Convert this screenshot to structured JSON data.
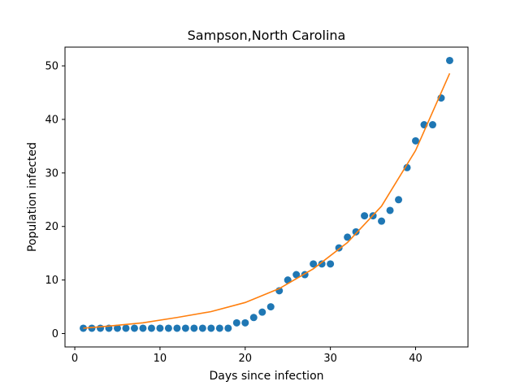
{
  "chart_data": {
    "type": "scatter",
    "title": "Sampson,North Carolina",
    "xlabel": "Days since infection",
    "ylabel": "Population infected",
    "xlim": [
      -1.15,
      46.15
    ],
    "ylim": [
      -2.5,
      53.5
    ],
    "xticks": [
      0,
      10,
      20,
      30,
      40
    ],
    "yticks": [
      0,
      10,
      20,
      30,
      40,
      50
    ],
    "grid": false,
    "series": [
      {
        "kind": "scatter",
        "color": "#1f77b4",
        "x": [
          1,
          2,
          3,
          4,
          5,
          6,
          7,
          8,
          9,
          10,
          11,
          12,
          13,
          14,
          15,
          16,
          17,
          18,
          19,
          20,
          21,
          22,
          23,
          24,
          25,
          26,
          27,
          28,
          29,
          30,
          31,
          32,
          33,
          34,
          35,
          36,
          37,
          38,
          39,
          40,
          41,
          42,
          43,
          44
        ],
        "y": [
          1,
          1,
          1,
          1,
          1,
          1,
          1,
          1,
          1,
          1,
          1,
          1,
          1,
          1,
          1,
          1,
          1,
          1,
          2,
          2,
          3,
          4,
          5,
          8,
          10,
          11,
          11,
          13,
          13,
          13,
          16,
          18,
          19,
          22,
          22,
          21,
          23,
          25,
          31,
          36,
          39,
          39,
          44,
          51
        ]
      },
      {
        "kind": "line",
        "color": "#ff7f0e",
        "x": [
          1,
          4,
          8,
          12,
          16,
          20,
          24,
          28,
          32,
          36,
          40,
          44
        ],
        "y": [
          1.0,
          1.4,
          2.0,
          3.0,
          4.1,
          5.8,
          8.4,
          12.1,
          17.0,
          23.8,
          34.2,
          48.6
        ]
      }
    ]
  }
}
